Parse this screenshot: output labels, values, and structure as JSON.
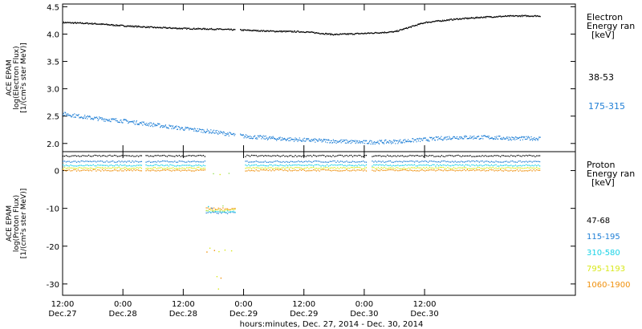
{
  "colors": {
    "black": "#000000",
    "blue": "#1f7fd6",
    "cyan": "#18d2e6",
    "yellow": "#d8e81a",
    "orange": "#f0900c",
    "light_green": "#9be25c"
  },
  "chart_data": [
    {
      "type": "scatter",
      "panel": "electron",
      "ylabel": [
        "ACE EPAM",
        "log(Electron Flux)",
        "[1/(cm²s ster MeV)]"
      ],
      "ylim": [
        1.85,
        4.55
      ],
      "yticks": [
        2.0,
        2.5,
        3.0,
        3.5,
        4.0,
        4.5
      ],
      "ytick_labels": [
        "2.0",
        "2.5",
        "3.0",
        "3.5",
        "4.0",
        "4.5"
      ],
      "legend_title": [
        "Electron",
        "Energy ran",
        "[keV]"
      ],
      "series": [
        {
          "name": "38-53",
          "color": "black",
          "points": [
            [
              0,
              4.22
            ],
            [
              6,
              4.2
            ],
            [
              12,
              4.16
            ],
            [
              18,
              4.13
            ],
            [
              24,
              4.11
            ],
            [
              30,
              4.1
            ],
            [
              36,
              4.08
            ],
            [
              42,
              4.06
            ],
            [
              48,
              4.05
            ],
            [
              54,
              4.0
            ],
            [
              60,
              4.02
            ],
            [
              66,
              4.05
            ],
            [
              72,
              4.22
            ],
            [
              78,
              4.28
            ],
            [
              84,
              4.32
            ],
            [
              90,
              4.34
            ],
            [
              95,
              4.34
            ]
          ]
        },
        {
          "name": "175-315",
          "color": "blue",
          "points": [
            [
              0,
              2.55
            ],
            [
              6,
              2.47
            ],
            [
              12,
              2.42
            ],
            [
              18,
              2.35
            ],
            [
              24,
              2.28
            ],
            [
              30,
              2.22
            ],
            [
              36,
              2.14
            ],
            [
              42,
              2.1
            ],
            [
              48,
              2.07
            ],
            [
              54,
              2.05
            ],
            [
              60,
              2.03
            ],
            [
              66,
              2.04
            ],
            [
              72,
              2.08
            ],
            [
              78,
              2.12
            ],
            [
              84,
              2.12
            ],
            [
              90,
              2.1
            ],
            [
              95,
              2.1
            ]
          ]
        }
      ]
    },
    {
      "type": "scatter",
      "panel": "proton",
      "xlabel": "hours:minutes, Dec. 27, 2014 - Dec. 30, 2014",
      "ylabel": [
        "ACE EPAM",
        "log(Proton Flux)",
        "[1/(cm²s ster MeV)]"
      ],
      "ylim": [
        -33,
        5
      ],
      "yticks": [
        0,
        -10,
        -20,
        -30
      ],
      "ytick_labels": [
        "0",
        "-10",
        "-20",
        "-30"
      ],
      "legend_title": [
        "Proton",
        "Energy ran",
        "[keV]"
      ],
      "series": [
        {
          "name": "47-68",
          "color": "black",
          "level": 4.0
        },
        {
          "name": "115-195",
          "color": "blue",
          "level": 2.5
        },
        {
          "name": "310-580",
          "color": "cyan",
          "level": 1.5
        },
        {
          "name": "795-1193",
          "color": "yellow",
          "level": 0.8
        },
        {
          "name": "1060-1900",
          "color": "orange",
          "level": 0.2
        }
      ],
      "extra_series_color": "light_green"
    }
  ],
  "xaxis": {
    "xlim": [
      0,
      102
    ],
    "ticks": [
      {
        "hour": 0,
        "time": "12:00",
        "date": "Dec.27"
      },
      {
        "hour": 12,
        "time": "0:00",
        "date": "Dec.28"
      },
      {
        "hour": 24,
        "time": "12:00",
        "date": "Dec.28"
      },
      {
        "hour": 36,
        "time": "0:00",
        "date": "Dec.29"
      },
      {
        "hour": 48,
        "time": "12:00",
        "date": "Dec.29"
      },
      {
        "hour": 60,
        "time": "0:00",
        "date": "Dec.30"
      },
      {
        "hour": 72,
        "time": "12:00",
        "date": "Dec.30"
      }
    ]
  }
}
